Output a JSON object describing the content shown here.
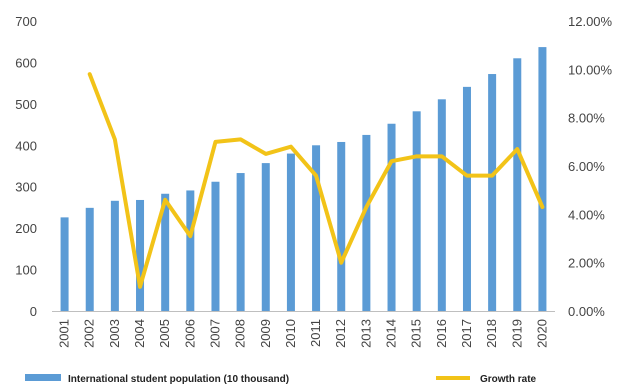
{
  "chart_data": {
    "type": "bar+line",
    "categories": [
      "2001",
      "2002",
      "2003",
      "2004",
      "2005",
      "2006",
      "2007",
      "2008",
      "2009",
      "2010",
      "2011",
      "2012",
      "2013",
      "2014",
      "2015",
      "2016",
      "2017",
      "2018",
      "2019",
      "2020"
    ],
    "series": [
      {
        "name": "International student population (10 thousand)",
        "type": "bar",
        "axis": "left",
        "color": "#5B9BD5",
        "values": [
          226,
          249,
          266,
          268,
          283,
          291,
          312,
          333,
          357,
          380,
          400,
          408,
          425,
          452,
          482,
          511,
          541,
          572,
          610,
          637
        ]
      },
      {
        "name": "Growth rate",
        "type": "line",
        "axis": "right",
        "color": "#F2C318",
        "values": [
          null,
          9.8,
          7.1,
          1.0,
          4.6,
          3.1,
          7.0,
          7.1,
          6.5,
          6.8,
          5.6,
          2.0,
          4.3,
          6.2,
          6.4,
          6.4,
          5.6,
          5.6,
          6.7,
          4.3
        ]
      }
    ],
    "left_axis": {
      "min": 0,
      "max": 700,
      "ticks": [
        0,
        100,
        200,
        300,
        400,
        500,
        600,
        700
      ]
    },
    "right_axis": {
      "min": 0,
      "max": 12,
      "ticks": [
        "0.00%",
        "2.00%",
        "4.00%",
        "6.00%",
        "8.00%",
        "10.00%",
        "12.00%"
      ]
    },
    "grid": false,
    "legend_position": "bottom"
  }
}
